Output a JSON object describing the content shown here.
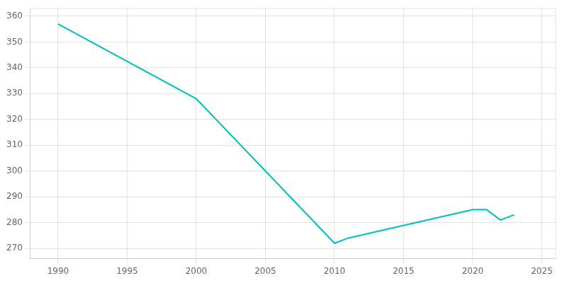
{
  "chart_data": {
    "type": "line",
    "x": [
      1990,
      2000,
      2010,
      2011,
      2020,
      2021,
      2022,
      2023
    ],
    "values": [
      357,
      328,
      272,
      274,
      285,
      285,
      281,
      283
    ],
    "color": "#00BFBF",
    "xlim": [
      1988,
      2026
    ],
    "xticks": [
      1990,
      1995,
      2000,
      2005,
      2010,
      2015,
      2020,
      2025
    ],
    "ylim": [
      266,
      363
    ],
    "yticks": [
      270,
      280,
      290,
      300,
      310,
      320,
      330,
      340,
      350,
      360
    ],
    "grid": true
  }
}
